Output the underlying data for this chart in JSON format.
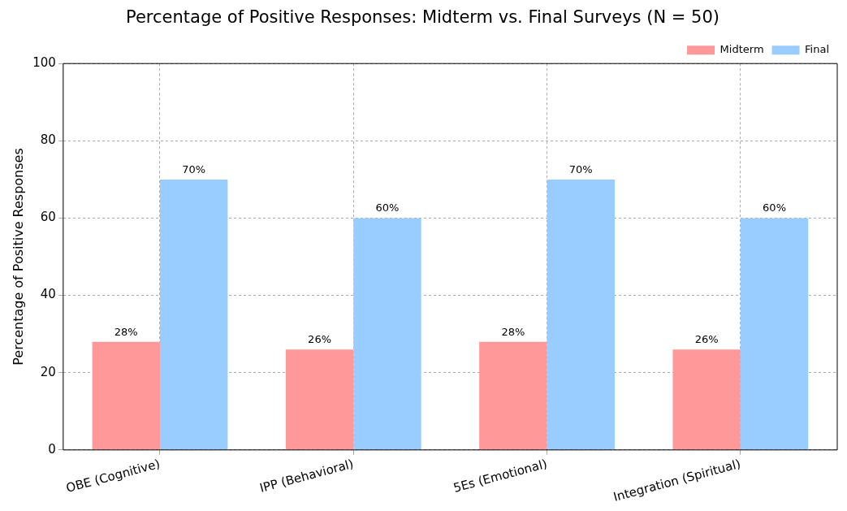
{
  "chart_data": {
    "type": "bar",
    "title": "Percentage of Positive Responses: Midterm vs. Final Surveys (N = 50)",
    "ylabel": "Percentage of Positive Responses",
    "categories": [
      "OBE (Cognitive)",
      "IPP (Behavioral)",
      "5Es (Emotional)",
      "Integration (Spiritual)"
    ],
    "series": [
      {
        "name": "Midterm",
        "color": "#ff9999",
        "values": [
          28,
          26,
          28,
          26
        ],
        "value_labels": [
          "28%",
          "26%",
          "28%",
          "26%"
        ]
      },
      {
        "name": "Final",
        "color": "#99ccff",
        "values": [
          70,
          60,
          70,
          60
        ],
        "value_labels": [
          "70%",
          "60%",
          "70%",
          "60%"
        ]
      }
    ],
    "ylim": [
      0,
      100
    ],
    "yticks": [
      0,
      20,
      40,
      60,
      80,
      100
    ],
    "grid": true,
    "legend": "top right"
  }
}
